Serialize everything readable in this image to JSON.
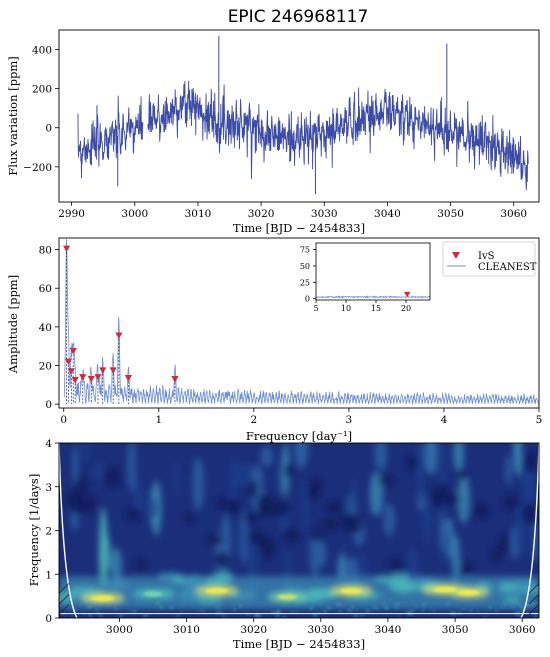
{
  "figure": {
    "title": "EPIC 246968117"
  },
  "chart_data": [
    {
      "type": "line",
      "panel": "light-curve",
      "xlabel": "Time [BJD − 2454833]",
      "ylabel": "Flux variation [ppm]",
      "xlim": [
        2988,
        3064
      ],
      "ylim": [
        -380,
        500
      ],
      "xticks": [
        "2990",
        "3000",
        "3010",
        "3020",
        "3030",
        "3040",
        "3050",
        "3060"
      ],
      "yticks": [
        "−200",
        "0",
        "200",
        "400"
      ],
      "xtick_values": [
        2990,
        3000,
        3010,
        3020,
        3030,
        3040,
        3050,
        3060
      ],
      "ytick_values": [
        -200,
        0,
        200,
        400
      ],
      "line_color": "#3b4ba6",
      "trend": {
        "x": [
          2991,
          2993,
          2996,
          2999,
          3002,
          3005,
          3007,
          3009,
          3011,
          3013,
          3016,
          3019,
          3022,
          3025,
          3028,
          3031,
          3034,
          3037,
          3040,
          3043,
          3046,
          3049,
          3052,
          3055,
          3058,
          3060,
          3062
        ],
        "y": [
          -120,
          -90,
          -60,
          -20,
          20,
          60,
          110,
          130,
          70,
          40,
          20,
          0,
          -40,
          -60,
          -50,
          -20,
          30,
          60,
          90,
          40,
          20,
          -10,
          -40,
          -70,
          -100,
          -150,
          -200
        ]
      },
      "spikes": [
        {
          "x": 3013.3,
          "y": 470
        },
        {
          "x": 3049.4,
          "y": 430
        },
        {
          "x": 3028.6,
          "y": -340
        },
        {
          "x": 2997.3,
          "y": -300
        },
        {
          "x": 3062.0,
          "y": -300
        }
      ]
    },
    {
      "type": "line",
      "panel": "periodogram",
      "xlabel": "Frequency [day⁻¹]",
      "ylabel": "Amplitude [ppm]",
      "xlim": [
        -0.05,
        5
      ],
      "ylim": [
        -2,
        86
      ],
      "xticks": [
        "0",
        "1",
        "2",
        "3",
        "4",
        "5"
      ],
      "yticks": [
        "0",
        "20",
        "40",
        "60",
        "80"
      ],
      "xtick_values": [
        0,
        1,
        2,
        3,
        4,
        5
      ],
      "ytick_values": [
        0,
        20,
        40,
        60,
        80
      ],
      "legend_position": "top-right",
      "series": [
        {
          "name": "CLEANEST",
          "style": "line",
          "color": "#6b8ed6"
        },
        {
          "name": "IvS",
          "style": "triangle-down",
          "color": "#d62838"
        }
      ],
      "peaks": [
        {
          "f": 0.03,
          "a": 80.5
        },
        {
          "f": 0.05,
          "a": 22
        },
        {
          "f": 0.08,
          "a": 17
        },
        {
          "f": 0.1,
          "a": 27.5
        },
        {
          "f": 0.12,
          "a": 12.5
        },
        {
          "f": 0.2,
          "a": 14
        },
        {
          "f": 0.29,
          "a": 13
        },
        {
          "f": 0.36,
          "a": 14
        },
        {
          "f": 0.41,
          "a": 17.5
        },
        {
          "f": 0.52,
          "a": 17.5
        },
        {
          "f": 0.58,
          "a": 35.5
        },
        {
          "f": 0.68,
          "a": 13.5
        },
        {
          "f": 1.17,
          "a": 13
        }
      ],
      "inset": {
        "xlim": [
          5,
          24
        ],
        "ylim": [
          -2,
          85
        ],
        "xticks": [
          "5",
          "10",
          "15",
          "20"
        ],
        "yticks": [
          "0",
          "25",
          "50",
          "75"
        ],
        "xtick_values": [
          5,
          10,
          15,
          20
        ],
        "ytick_values": [
          0,
          25,
          50,
          75
        ],
        "peak": {
          "f": 20.2,
          "a": 6.5
        }
      }
    },
    {
      "type": "heatmap",
      "panel": "wavelet",
      "xlabel": "Time [BJD − 2454833]",
      "ylabel": "Frequency [1/days]",
      "xlim": [
        2991,
        3062.5
      ],
      "ylim": [
        0,
        4
      ],
      "xticks": [
        "3000",
        "3010",
        "3020",
        "3030",
        "3040",
        "3050",
        "3060"
      ],
      "yticks": [
        "0",
        "1",
        "2",
        "3",
        "4"
      ],
      "xtick_values": [
        3000,
        3010,
        3020,
        3030,
        3040,
        3050,
        3060
      ],
      "ytick_values": [
        0,
        1,
        2,
        3,
        4
      ],
      "colormap": [
        "#0f1a5a",
        "#1e3f8c",
        "#2f66a8",
        "#3d8fb6",
        "#48b6b8",
        "#7ad3a8",
        "#c8e36a",
        "#f5e94a"
      ],
      "hotspots": [
        {
          "t": 2997.5,
          "f": 0.45,
          "amp": 0.95
        },
        {
          "t": 3014.5,
          "f": 0.62,
          "amp": 0.9
        },
        {
          "t": 3034.5,
          "f": 0.62,
          "amp": 0.85
        },
        {
          "t": 3048.5,
          "f": 0.65,
          "amp": 1.0
        },
        {
          "t": 3052.0,
          "f": 0.58,
          "amp": 0.8
        },
        {
          "t": 3005.0,
          "f": 0.55,
          "amp": 0.55
        },
        {
          "t": 3025.0,
          "f": 0.48,
          "amp": 0.6
        }
      ]
    }
  ]
}
